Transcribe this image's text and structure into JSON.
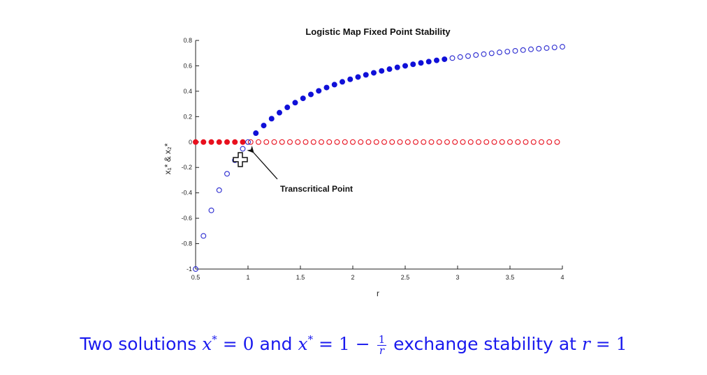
{
  "chart_data": {
    "type": "scatter",
    "title": "Logistic Map Fixed Point Stability",
    "xlabel": "r",
    "ylabel": "x₁* & x₂*",
    "xlim": [
      0.5,
      4
    ],
    "ylim": [
      -1,
      0.8
    ],
    "xticks": [
      0.5,
      1,
      1.5,
      2,
      2.5,
      3,
      3.5,
      4
    ],
    "xtick_labels": [
      "0.5",
      "1",
      "1.5",
      "2",
      "2.5",
      "3",
      "3.5",
      "4"
    ],
    "yticks": [
      -1,
      -0.8,
      -0.6,
      -0.4,
      -0.2,
      0,
      0.2,
      0.4,
      0.6,
      0.8
    ],
    "ytick_labels": [
      "-1",
      "-0.8",
      "-0.6",
      "-0.4",
      "-0.2",
      "0",
      "0.2",
      "0.4",
      "0.6",
      "0.8"
    ],
    "grid": false,
    "series": [
      {
        "marker": "filled",
        "color": "#e8101e",
        "x": [
          0.5,
          0.575,
          0.65,
          0.725,
          0.8,
          0.875,
          0.95
        ],
        "y": [
          0,
          0,
          0,
          0,
          0,
          0,
          0
        ]
      },
      {
        "marker": "hollow",
        "color": "#e8101e",
        "x": [
          1.025,
          1.1,
          1.175,
          1.25,
          1.325,
          1.4,
          1.475,
          1.55,
          1.625,
          1.7,
          1.775,
          1.85,
          1.925,
          2.0,
          2.075,
          2.15,
          2.225,
          2.3,
          2.375,
          2.45,
          2.525,
          2.6,
          2.675,
          2.75,
          2.825,
          2.9,
          2.975,
          3.05,
          3.125,
          3.2,
          3.275,
          3.35,
          3.425,
          3.5,
          3.575,
          3.65,
          3.725,
          3.8,
          3.875,
          3.95
        ],
        "y": [
          0,
          0,
          0,
          0,
          0,
          0,
          0,
          0,
          0,
          0,
          0,
          0,
          0,
          0,
          0,
          0,
          0,
          0,
          0,
          0,
          0,
          0,
          0,
          0,
          0,
          0,
          0,
          0,
          0,
          0,
          0,
          0,
          0,
          0,
          0,
          0,
          0,
          0,
          0,
          0
        ]
      },
      {
        "marker": "hollow",
        "color": "#2a2ad0",
        "x": [
          0.5,
          0.575,
          0.65,
          0.725,
          0.8,
          0.875,
          0.95,
          1.0
        ],
        "y": [
          -1.0,
          -0.739,
          -0.538,
          -0.379,
          -0.25,
          -0.143,
          -0.053,
          0.0
        ]
      },
      {
        "marker": "filled",
        "color": "#1010d8",
        "x": [
          1.075,
          1.15,
          1.225,
          1.3,
          1.375,
          1.45,
          1.525,
          1.6,
          1.675,
          1.75,
          1.825,
          1.9,
          1.975,
          2.05,
          2.125,
          2.2,
          2.275,
          2.35,
          2.425,
          2.5,
          2.575,
          2.65,
          2.725,
          2.8,
          2.875
        ],
        "y": [
          0.07,
          0.13,
          0.184,
          0.231,
          0.273,
          0.31,
          0.344,
          0.375,
          0.403,
          0.429,
          0.452,
          0.474,
          0.494,
          0.512,
          0.529,
          0.545,
          0.56,
          0.574,
          0.588,
          0.6,
          0.612,
          0.623,
          0.633,
          0.643,
          0.652
        ]
      },
      {
        "marker": "hollow",
        "color": "#2a2ad0",
        "x": [
          2.95,
          3.025,
          3.1,
          3.175,
          3.25,
          3.325,
          3.4,
          3.475,
          3.55,
          3.625,
          3.7,
          3.775,
          3.85,
          3.925,
          4.0
        ],
        "y": [
          0.661,
          0.669,
          0.677,
          0.685,
          0.692,
          0.699,
          0.706,
          0.712,
          0.718,
          0.724,
          0.73,
          0.735,
          0.74,
          0.745,
          0.75
        ]
      }
    ],
    "annotations": [
      {
        "text": "Transcritical Point",
        "x": 1.0,
        "y": 0.0
      }
    ]
  },
  "caption": {
    "part1": "Two solutions ",
    "math1": "x",
    "math1_sup": "*",
    "math1_rest": " = 0",
    "part2": " and ",
    "math2": "x",
    "math2_sup": "*",
    "math2_rest": " = 1 − ",
    "frac_num": "1",
    "frac_den": "r",
    "part3": " exchange stability at ",
    "math3": "r",
    "math3_rest": " = 1"
  }
}
